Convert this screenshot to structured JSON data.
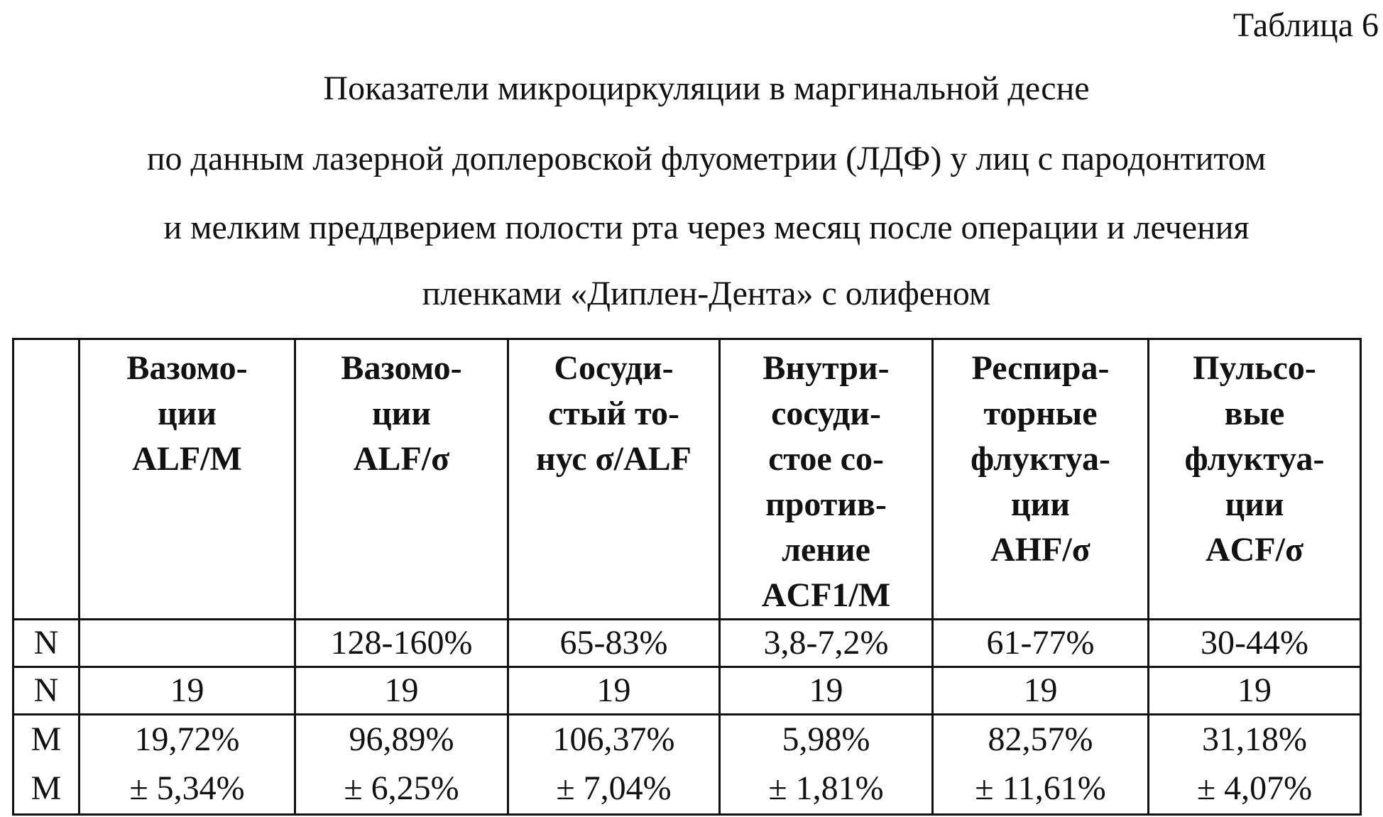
{
  "header": {
    "label": "Таблица 6"
  },
  "caption": {
    "lines": [
      "Показатели микроциркуляции в маргинальной десне",
      "по данным лазерной доплеровской флуометрии (ЛДФ) у лиц с пародонтитом",
      "и мелким преддверием полости рта через месяц после операции и лечения",
      "пленками «Диплен-Дента» с олифеном"
    ]
  },
  "table": {
    "headers": [
      null,
      [
        "Вазомо-",
        "ции",
        "ALF/M"
      ],
      [
        "Вазомо-",
        "ции",
        "ALF/σ"
      ],
      [
        "Сосуди-",
        "стый то-",
        "нус σ/ALF"
      ],
      [
        "Внутри-",
        "сосуди-",
        "стое со-",
        "против-",
        "ление",
        "ACF1/M"
      ],
      [
        "Респира-",
        "торные",
        "флуктуа-",
        "ции",
        "AHF/σ"
      ],
      [
        "Пульсо-",
        "вые",
        "флуктуа-",
        "ции",
        "ACF/σ"
      ]
    ],
    "rows": [
      [
        "N",
        null,
        "128-160%",
        "65-83%",
        "3,8-7,2%",
        "61-77%",
        "30-44%"
      ],
      [
        "N",
        "19",
        "19",
        "19",
        "19",
        "19",
        "19"
      ],
      [
        "M",
        "19,72%",
        "96,89%",
        "106,37%",
        "5,98%",
        "82,57%",
        "31,18%"
      ],
      [
        "M",
        "± 5,34%",
        "± 6,25%",
        "± 7,04%",
        "± 1,81%",
        "± 11,61%",
        "± 4,07%"
      ]
    ]
  }
}
